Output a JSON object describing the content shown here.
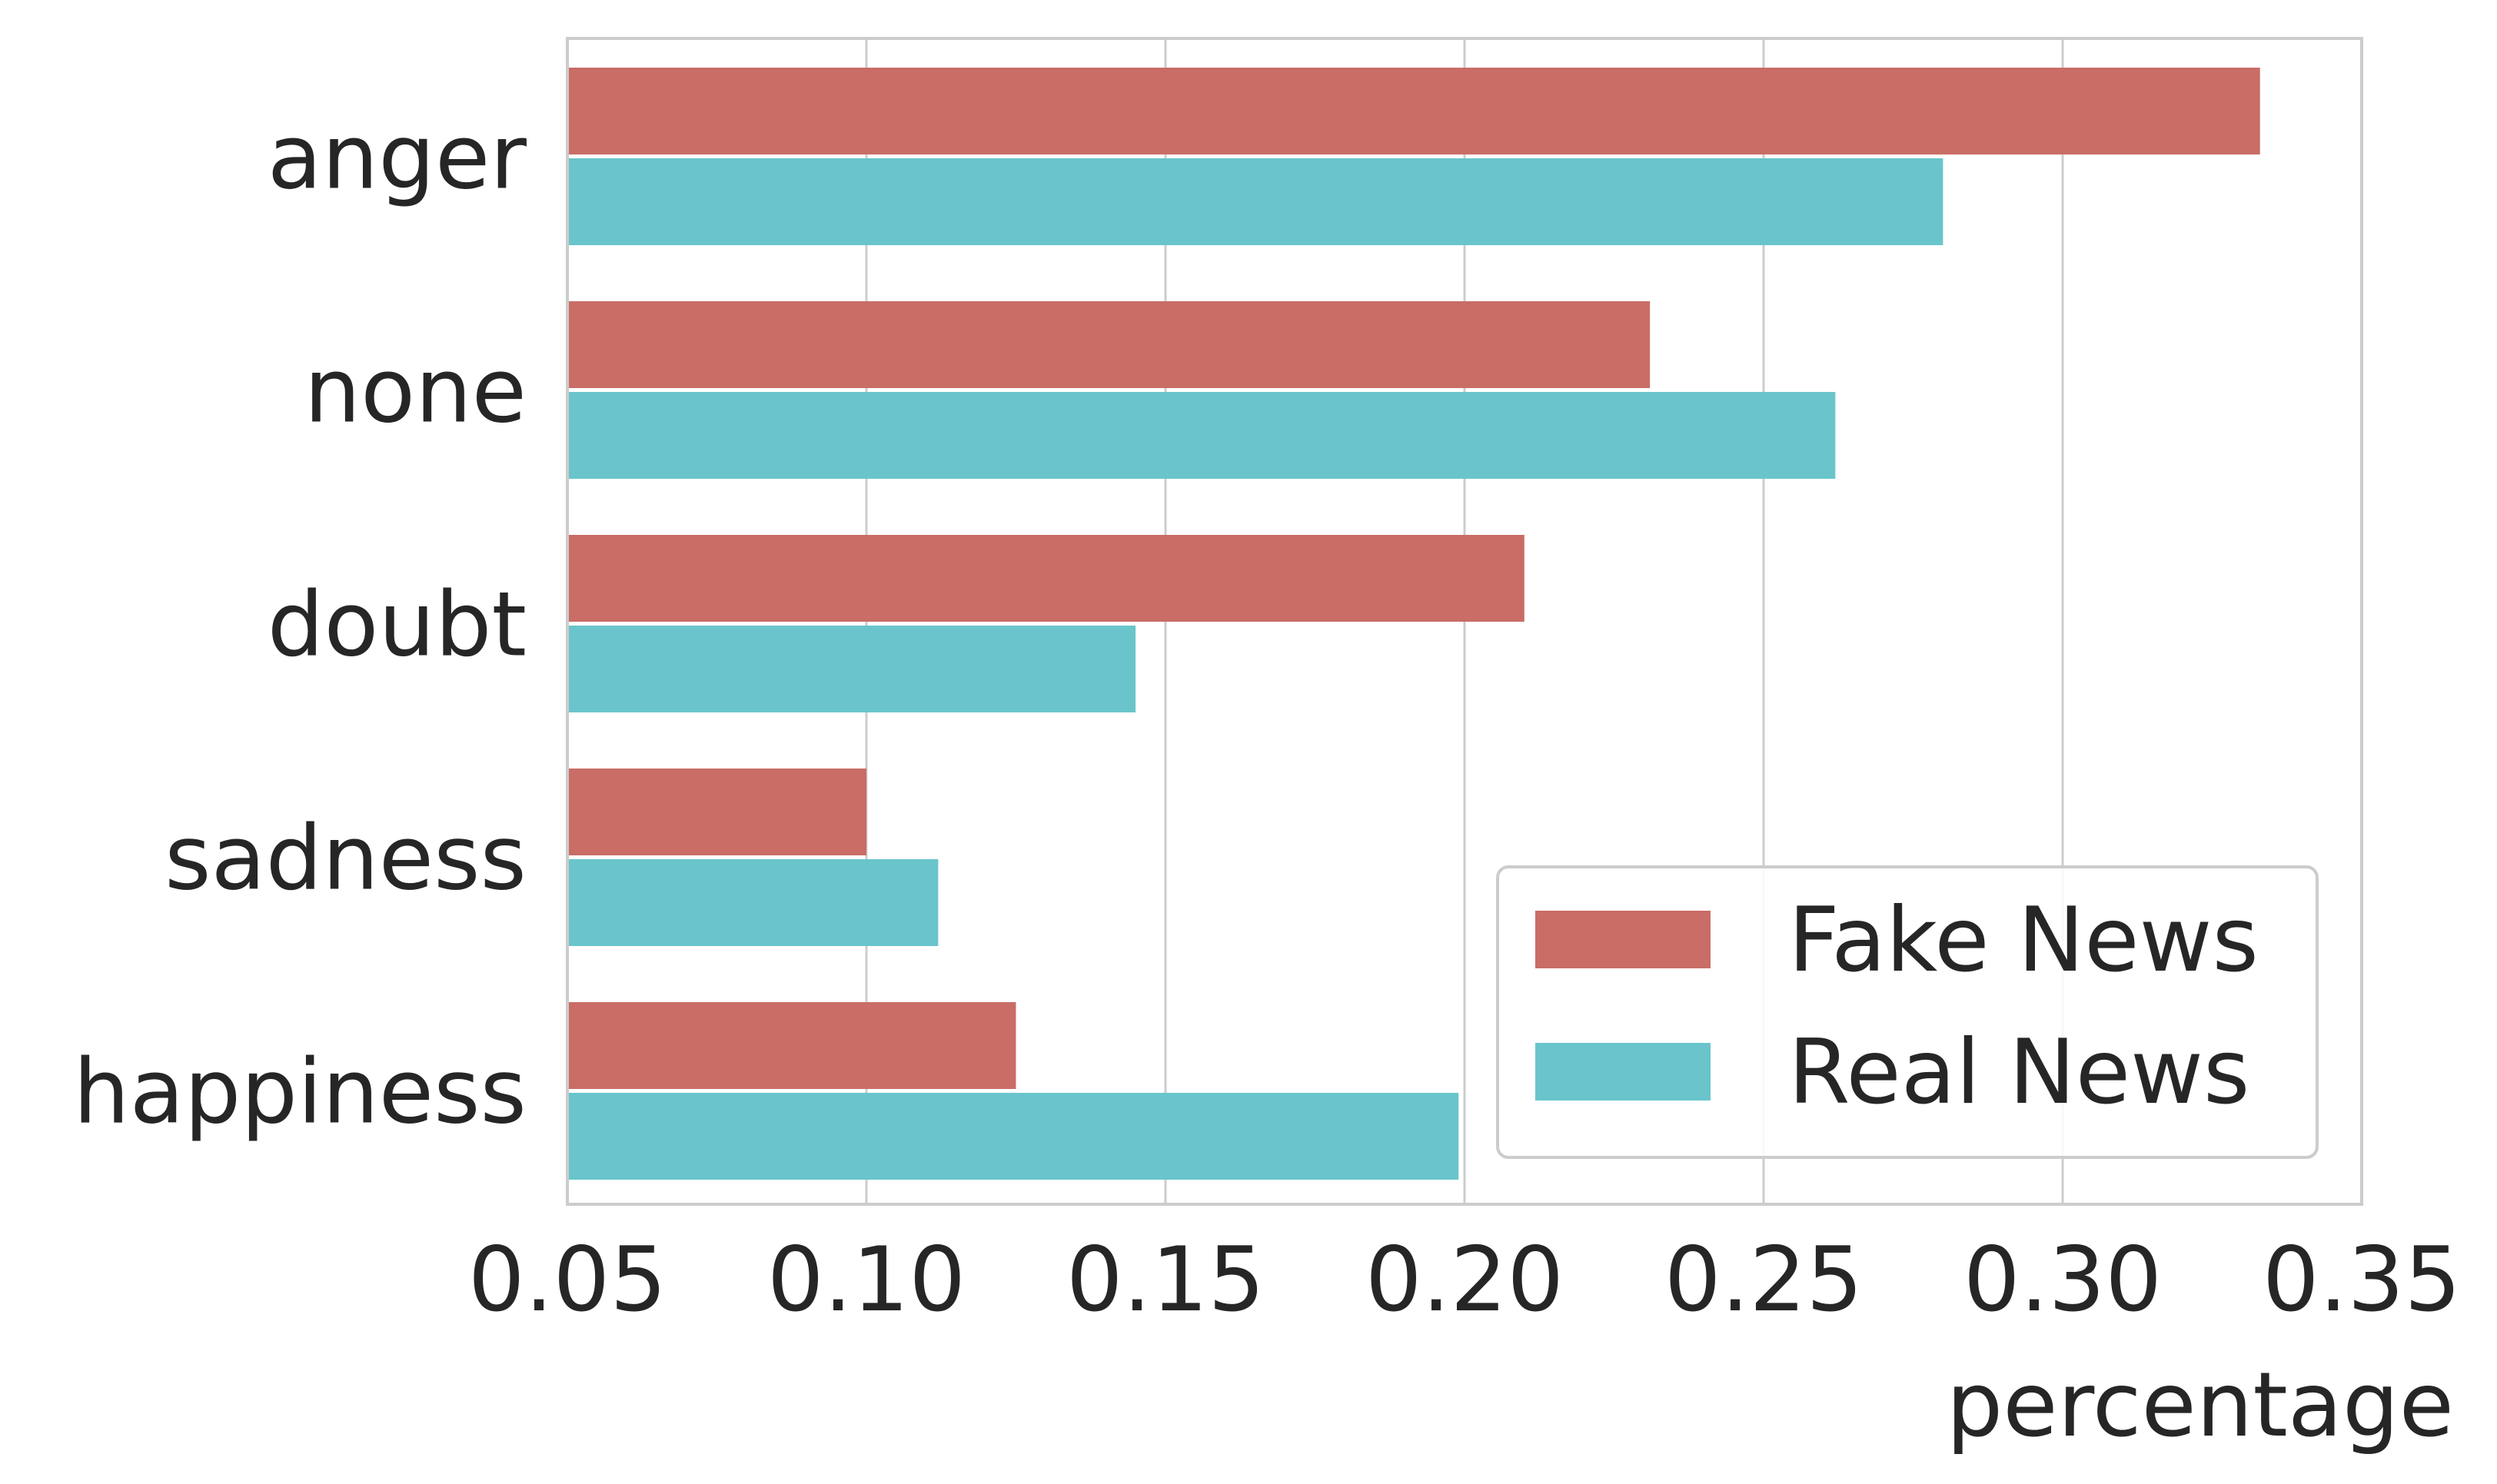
{
  "chart_data": {
    "type": "bar",
    "orientation": "horizontal",
    "categories": [
      "anger",
      "none",
      "doubt",
      "sadness",
      "happiness"
    ],
    "series": [
      {
        "name": "Fake News",
        "color": "#c96d66",
        "values": [
          0.333,
          0.231,
          0.21,
          0.1,
          0.125
        ]
      },
      {
        "name": "Real News",
        "color": "#69c5cb",
        "values": [
          0.28,
          0.262,
          0.145,
          0.112,
          0.199
        ]
      }
    ],
    "xlabel": "percentage",
    "ylabel": "",
    "xlim": [
      0.05,
      0.35
    ],
    "xticks": [
      "0.05",
      "0.10",
      "0.15",
      "0.20",
      "0.25",
      "0.30",
      "0.35"
    ],
    "grid": "vertical",
    "legend_position": "lower-right"
  }
}
